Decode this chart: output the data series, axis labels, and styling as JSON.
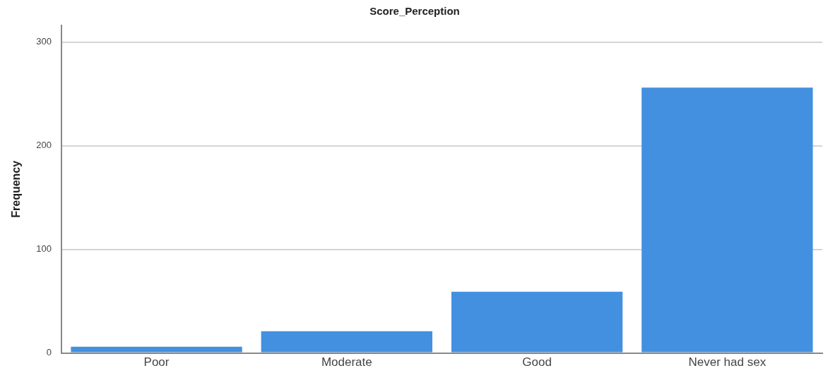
{
  "chart_data": {
    "type": "bar",
    "title": "Score_Perception",
    "ylabel": "Frequency",
    "categories": [
      "Poor",
      "Moderate",
      "Good",
      "Never had sex"
    ],
    "values": [
      6,
      21,
      59,
      256
    ],
    "color": "#4390e0",
    "ylim": [
      0,
      316
    ],
    "yticks": [
      0,
      100,
      200,
      300
    ],
    "grid": "y"
  }
}
